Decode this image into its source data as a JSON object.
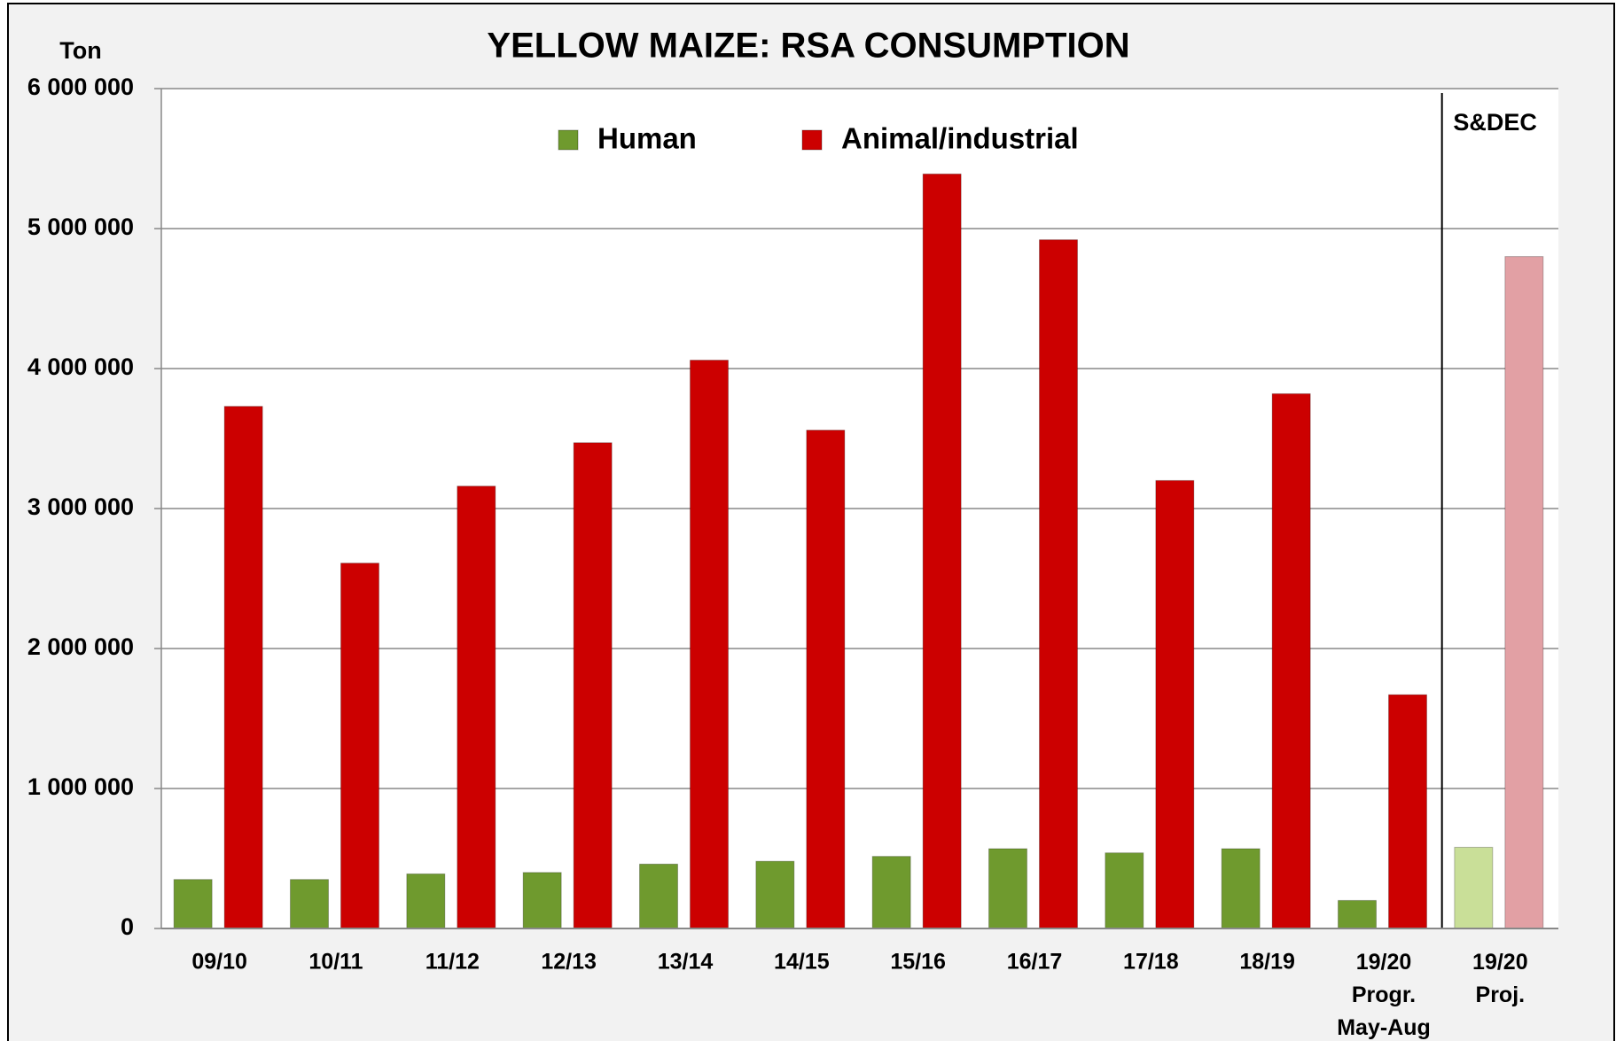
{
  "chart_data": {
    "type": "bar",
    "title": "YELLOW MAIZE: RSA CONSUMPTION",
    "y_axis_label": "Ton",
    "annotation": "S&DEC",
    "categories": [
      "09/10",
      "10/11",
      "11/12",
      "12/13",
      "13/14",
      "14/15",
      "15/16",
      "16/17",
      "17/18",
      "18/19",
      "19/20\nProgr.\nMay-Aug",
      "19/20\nProj."
    ],
    "series": [
      {
        "name": "Human",
        "color": "#6f9a2e",
        "projection_color": "#c9df98",
        "values": [
          350000,
          350000,
          390000,
          400000,
          460000,
          480000,
          515000,
          570000,
          540000,
          570000,
          200000,
          580000
        ]
      },
      {
        "name": "Animal/industrial",
        "color": "#cc0000",
        "projection_color": "#e2a0a4",
        "values": [
          3730000,
          2610000,
          3160000,
          3470000,
          4060000,
          3560000,
          5390000,
          4920000,
          3200000,
          3820000,
          1670000,
          4800000
        ]
      }
    ],
    "projection_categories": [
      11
    ],
    "ylim": [
      0,
      6000000
    ],
    "yticks": [
      {
        "value": 0,
        "label": "0"
      },
      {
        "value": 1000000,
        "label": "1 000 000"
      },
      {
        "value": 2000000,
        "label": "2 000 000"
      },
      {
        "value": 3000000,
        "label": "3 000 000"
      },
      {
        "value": 4000000,
        "label": "4 000 000"
      },
      {
        "value": 5000000,
        "label": "5 000 000"
      },
      {
        "value": 6000000,
        "label": "6 000 000"
      }
    ],
    "grid": true,
    "legend": "top"
  }
}
